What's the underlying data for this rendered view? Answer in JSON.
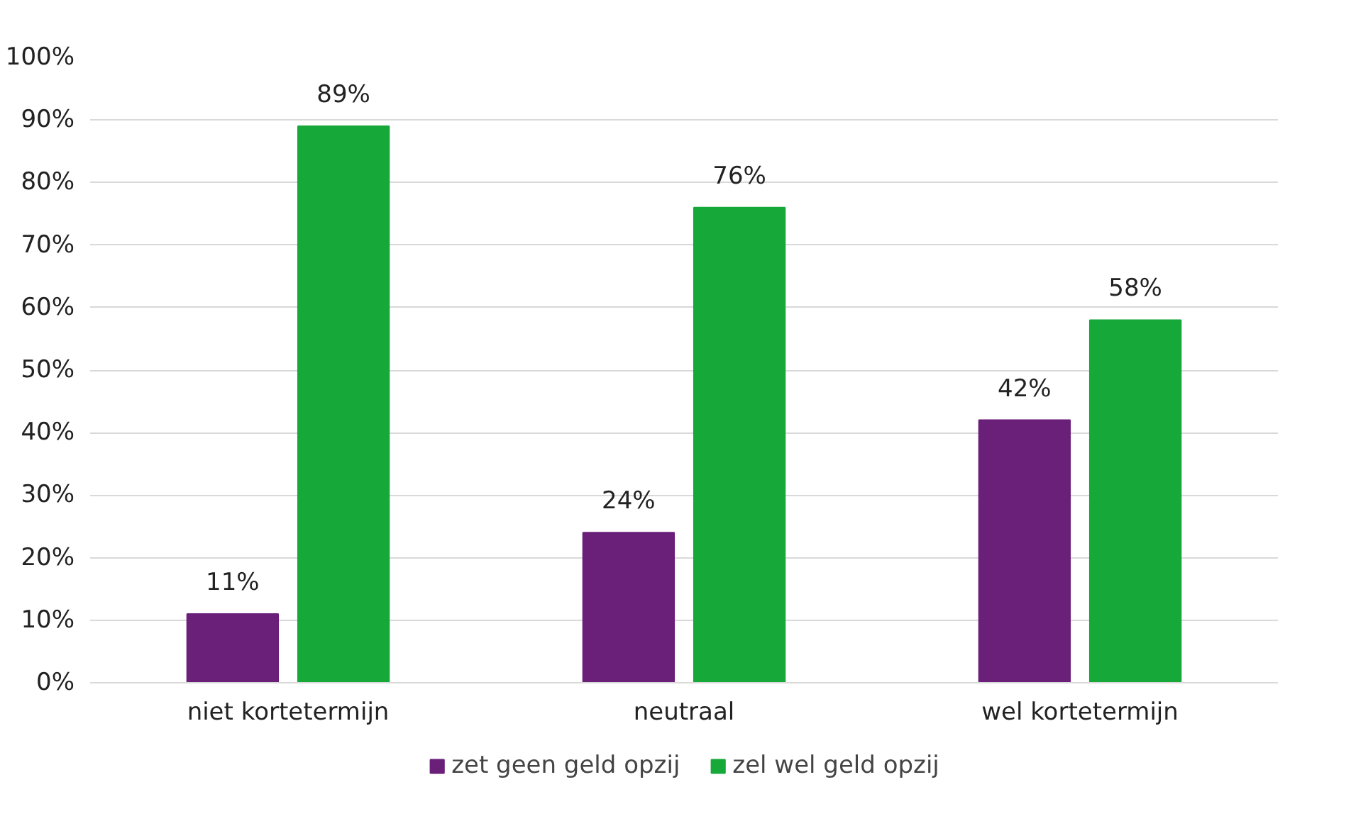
{
  "chart_data": {
    "type": "bar",
    "categories": [
      "niet kortetermijn",
      "neutraal",
      "wel kortetermijn"
    ],
    "series": [
      {
        "name": "zet geen geld opzij",
        "color": "#6a1f79",
        "values": [
          11,
          24,
          42
        ],
        "value_labels": [
          "11%",
          "24%",
          "42%"
        ]
      },
      {
        "name": "zel wel geld opzij",
        "color": "#17a83a",
        "values": [
          89,
          76,
          58
        ],
        "value_labels": [
          "89%",
          "76%",
          "58%"
        ]
      }
    ],
    "ylim": [
      0,
      100
    ],
    "yticks": [
      {
        "value": 0,
        "label": "0%"
      },
      {
        "value": 10,
        "label": "10%"
      },
      {
        "value": 20,
        "label": "20%"
      },
      {
        "value": 30,
        "label": "30%"
      },
      {
        "value": 40,
        "label": "40%"
      },
      {
        "value": 50,
        "label": "50%"
      },
      {
        "value": 60,
        "label": "60%"
      },
      {
        "value": 70,
        "label": "70%"
      },
      {
        "value": 80,
        "label": "80%"
      },
      {
        "value": 90,
        "label": "90%"
      },
      {
        "value": 100,
        "label": "100%"
      }
    ],
    "grid": "y",
    "legend": "bottom"
  }
}
